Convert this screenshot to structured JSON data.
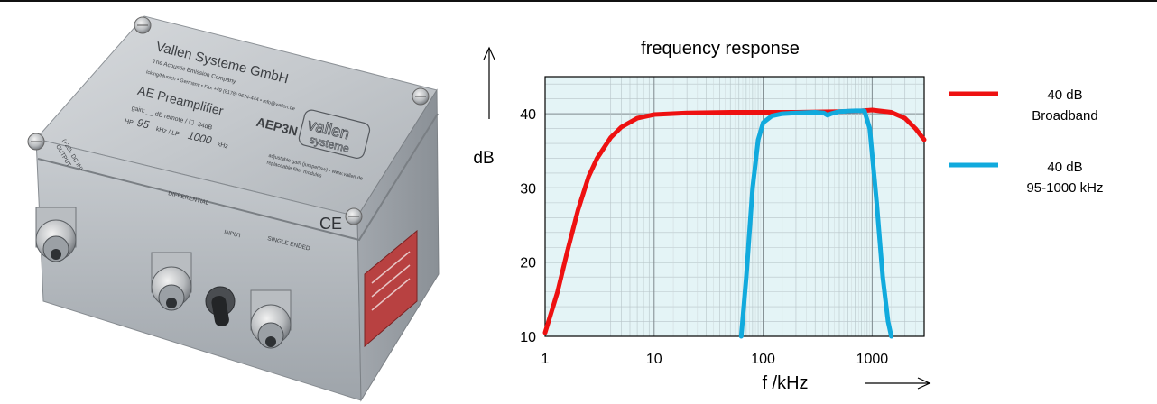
{
  "photo": {
    "company": "Vallen Systeme GmbH",
    "company_sub": "The Acoustic Emission Company",
    "address": "Icking/Munich • Germany • Fax +49 (8178) 9674-444 • info@vallen.de",
    "product": "AE Preamplifier",
    "model": "AEP3N",
    "gain_line": "gain: __ dB  remote / ☐ -34dB",
    "hp_label": "HP",
    "hp_value": "95",
    "lp_label": "kHz / LP",
    "lp_value": "1000",
    "lp_unit": "kHz",
    "website": "adjustable gain (jumper/sw) • www.vallen.de",
    "website_sub": "replaceable filter modules",
    "logo_top": "vallen",
    "logo_bottom": "systeme",
    "ce_mark": "CE",
    "output_label": "OUTPUT",
    "output_sub": "(+28V DC IN)",
    "differential_label": "DIFFERENTIAL",
    "input_label": "INPUT",
    "single_ended_label": "SINGLE ENDED"
  },
  "chart_data": {
    "type": "line",
    "title": "frequency response",
    "xlabel": "f /kHz",
    "ylabel": "dB",
    "xscale": "log",
    "xlim": [
      1,
      3000
    ],
    "ylim": [
      10,
      45
    ],
    "xticks": [
      "1",
      "10",
      "100",
      "1000"
    ],
    "yticks": [
      "10",
      "20",
      "30",
      "40"
    ],
    "grid": true,
    "legend_position": "right",
    "series": [
      {
        "name": "40 dB Broadband",
        "label_line1": "40 dB",
        "label_line2": "Broadband",
        "color": "#ee1111",
        "points": [
          [
            1,
            10.5
          ],
          [
            1.3,
            16
          ],
          [
            1.6,
            21.5
          ],
          [
            2,
            27
          ],
          [
            2.5,
            31.5
          ],
          [
            3,
            34
          ],
          [
            4,
            36.8
          ],
          [
            5,
            38.2
          ],
          [
            7,
            39.4
          ],
          [
            10,
            39.9
          ],
          [
            20,
            40.1
          ],
          [
            50,
            40.2
          ],
          [
            100,
            40.2
          ],
          [
            200,
            40.2
          ],
          [
            500,
            40.3
          ],
          [
            800,
            40.4
          ],
          [
            1000,
            40.5
          ],
          [
            1500,
            40.2
          ],
          [
            2000,
            39.4
          ],
          [
            2500,
            38
          ],
          [
            3000,
            36.5
          ]
        ]
      },
      {
        "name": "40 dB 95-1000 kHz",
        "label_line1": "40 dB",
        "label_line2": "95-1000 kHz",
        "color": "#11aadd",
        "points": [
          [
            63,
            10
          ],
          [
            70,
            18
          ],
          [
            80,
            30
          ],
          [
            90,
            36.5
          ],
          [
            100,
            38.8
          ],
          [
            120,
            39.7
          ],
          [
            150,
            40
          ],
          [
            200,
            40.1
          ],
          [
            300,
            40.2
          ],
          [
            360,
            40.1
          ],
          [
            390,
            39.8
          ],
          [
            420,
            40
          ],
          [
            500,
            40.3
          ],
          [
            700,
            40.4
          ],
          [
            850,
            40.4
          ],
          [
            950,
            38
          ],
          [
            1100,
            28
          ],
          [
            1250,
            18
          ],
          [
            1400,
            12
          ],
          [
            1500,
            10
          ]
        ]
      }
    ]
  }
}
